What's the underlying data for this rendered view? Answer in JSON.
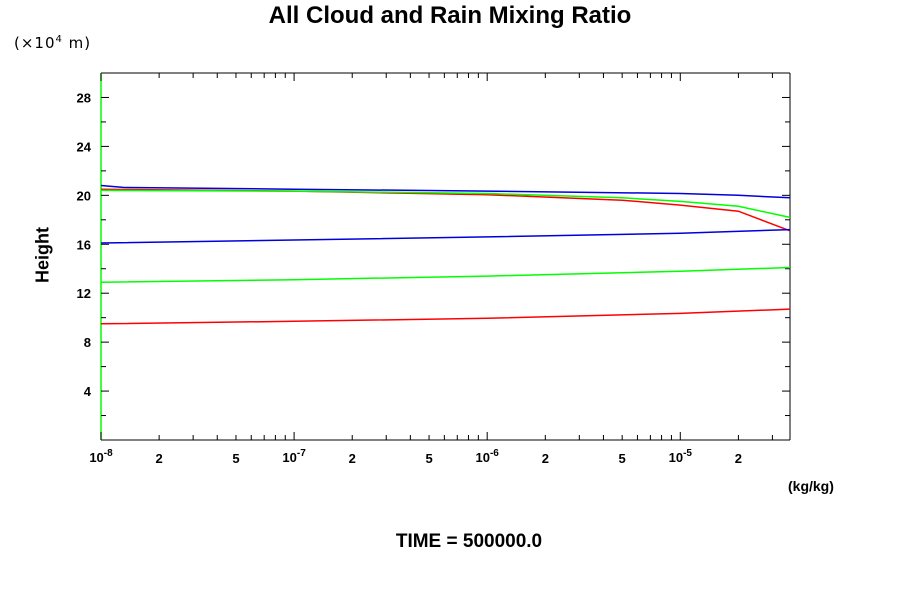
{
  "chart_data": {
    "type": "line",
    "title": "All Cloud and Rain Mixing Ratio",
    "ylabel": "Height",
    "y_unit_prefix": "(×10",
    "y_unit_exp": "4",
    "y_unit_suffix": "m)",
    "x_unit": "(kg/kg)",
    "footer": "TIME = 500000.0",
    "x_scale": "log",
    "xlim": [
      1e-08,
      3.7e-05
    ],
    "ylim": [
      0,
      30
    ],
    "grid": false,
    "x_ticks_major": [
      {
        "value": 1e-08,
        "base": "10",
        "exp": "-8"
      },
      {
        "value": 1e-07,
        "base": "10",
        "exp": "-7"
      },
      {
        "value": 1e-06,
        "base": "10",
        "exp": "-6"
      },
      {
        "value": 1e-05,
        "base": "10",
        "exp": "-5"
      }
    ],
    "x_ticks_minor_labeled": [
      {
        "value": 2e-08,
        "label": "2"
      },
      {
        "value": 5e-08,
        "label": "5"
      },
      {
        "value": 2e-07,
        "label": "2"
      },
      {
        "value": 5e-07,
        "label": "5"
      },
      {
        "value": 2e-06,
        "label": "2"
      },
      {
        "value": 5e-06,
        "label": "5"
      },
      {
        "value": 2e-05,
        "label": "2"
      }
    ],
    "y_ticks": [
      4,
      8,
      12,
      16,
      20,
      24,
      28
    ],
    "series": [
      {
        "color": "#ff0000",
        "points": [
          [
            1e-08,
            9.5
          ],
          [
            1e-07,
            9.7
          ],
          [
            1e-06,
            9.95
          ],
          [
            1e-05,
            10.35
          ],
          [
            3.7e-05,
            10.7
          ]
        ]
      },
      {
        "color": "#ff0000",
        "points": [
          [
            1e-08,
            20.5
          ],
          [
            1e-07,
            20.35
          ],
          [
            1e-06,
            20.05
          ],
          [
            5e-06,
            19.6
          ],
          [
            1e-05,
            19.2
          ],
          [
            2e-05,
            18.7
          ],
          [
            3.7e-05,
            17.1
          ]
        ]
      },
      {
        "color": "#00ff00",
        "points": [
          [
            1e-08,
            12.9
          ],
          [
            1e-07,
            13.1
          ],
          [
            1e-06,
            13.4
          ],
          [
            1e-05,
            13.8
          ],
          [
            3.7e-05,
            14.1
          ]
        ]
      },
      {
        "color": "#00ff00",
        "points": [
          [
            1e-08,
            20.4
          ],
          [
            1e-07,
            20.35
          ],
          [
            1e-06,
            20.15
          ],
          [
            5e-06,
            19.8
          ],
          [
            1e-05,
            19.5
          ],
          [
            2e-05,
            19.1
          ],
          [
            3.7e-05,
            18.2
          ]
        ]
      },
      {
        "color": "#0000dd",
        "points": [
          [
            1e-08,
            16.1
          ],
          [
            1e-07,
            16.35
          ],
          [
            1e-06,
            16.6
          ],
          [
            1e-05,
            16.9
          ],
          [
            3.7e-05,
            17.2
          ]
        ]
      },
      {
        "color": "#0000dd",
        "points": [
          [
            1e-08,
            20.8
          ],
          [
            1.3e-08,
            20.65
          ],
          [
            1e-07,
            20.5
          ],
          [
            1e-06,
            20.35
          ],
          [
            1e-05,
            20.15
          ],
          [
            2e-05,
            20.0
          ],
          [
            3.7e-05,
            19.8
          ]
        ]
      }
    ]
  }
}
